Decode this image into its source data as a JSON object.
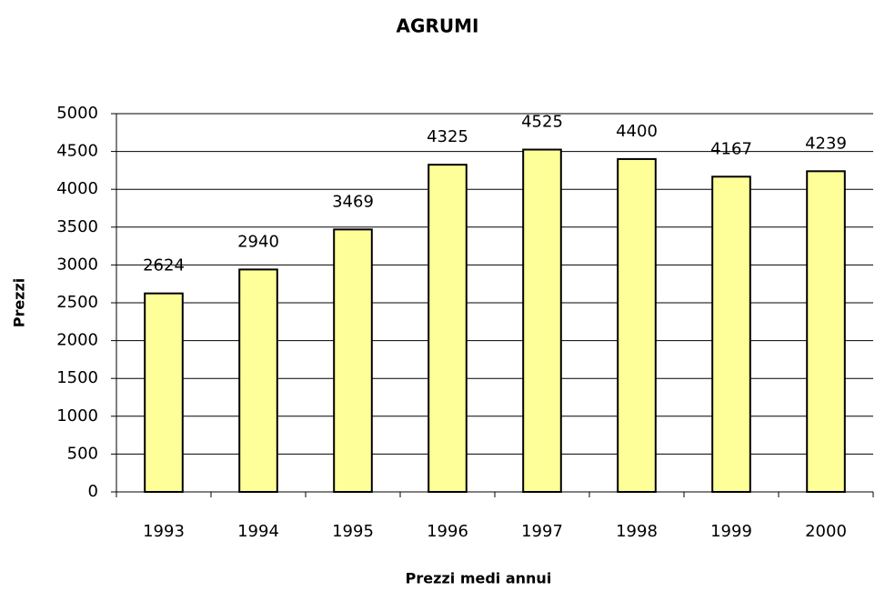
{
  "chart_data": {
    "type": "bar",
    "title": "AGRUMI",
    "x_label": "Prezzi medi annui",
    "y_label": "Prezzi",
    "categories": [
      "1993",
      "1994",
      "1995",
      "1996",
      "1997",
      "1998",
      "1999",
      "2000"
    ],
    "values": [
      2624,
      2940,
      3469,
      4325,
      4525,
      4400,
      4167,
      4239
    ],
    "color": "#ffff99",
    "ylim": [
      0,
      5000
    ],
    "yticks": [
      0,
      500,
      1000,
      1500,
      2000,
      2500,
      3000,
      3500,
      4000,
      4500,
      5000
    ],
    "grid": true
  }
}
